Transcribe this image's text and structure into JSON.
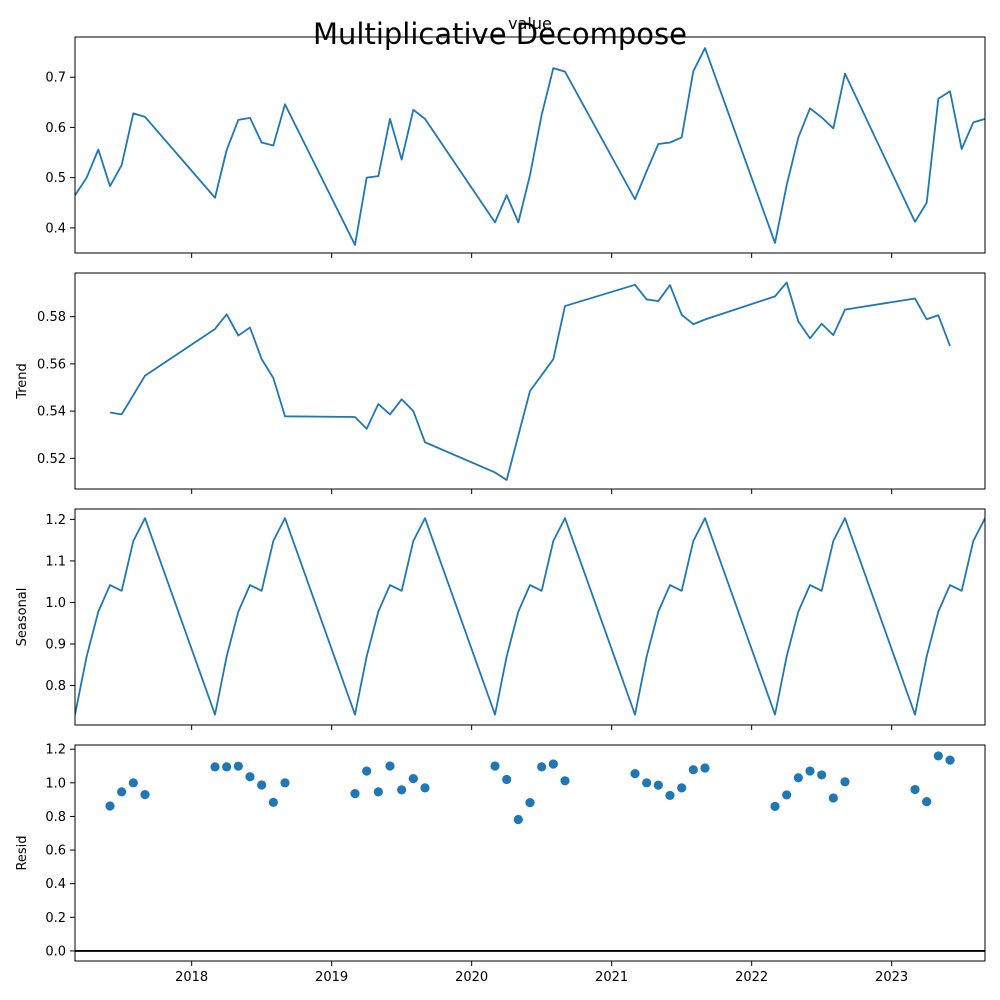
{
  "figure": {
    "title": "Multiplicative Decompose"
  },
  "chart_data": [
    {
      "type": "line",
      "title": "value",
      "ylabel": "",
      "xlim": [
        "2017-03",
        "2023-09"
      ],
      "ylim": [
        0.35,
        0.78
      ],
      "yticks": [
        0.4,
        0.5,
        0.6,
        0.7
      ],
      "ytick_labels": [
        "0.4",
        "0.5",
        "0.6",
        "0.7"
      ],
      "grid": false,
      "series": [
        {
          "color": "#1f77b4",
          "points": [
            [
              "2017-03",
              0.465
            ],
            [
              "2017-04",
              0.5
            ],
            [
              "2017-05",
              0.556
            ],
            [
              "2017-06",
              0.483
            ],
            [
              "2017-07",
              0.525
            ],
            [
              "2017-08",
              0.628
            ],
            [
              "2017-09",
              0.621
            ],
            [
              "2018-03",
              0.46
            ],
            [
              "2018-04",
              0.555
            ],
            [
              "2018-05",
              0.615
            ],
            [
              "2018-06",
              0.619
            ],
            [
              "2018-07",
              0.57
            ],
            [
              "2018-08",
              0.564
            ],
            [
              "2018-09",
              0.646
            ],
            [
              "2019-03",
              0.366
            ],
            [
              "2019-04",
              0.5
            ],
            [
              "2019-05",
              0.503
            ],
            [
              "2019-06",
              0.617
            ],
            [
              "2019-07",
              0.536
            ],
            [
              "2019-08",
              0.635
            ],
            [
              "2019-09",
              0.617
            ],
            [
              "2020-03",
              0.411
            ],
            [
              "2020-04",
              0.465
            ],
            [
              "2020-05",
              0.411
            ],
            [
              "2020-06",
              0.505
            ],
            [
              "2020-07",
              0.625
            ],
            [
              "2020-08",
              0.718
            ],
            [
              "2020-09",
              0.711
            ],
            [
              "2021-03",
              0.457
            ],
            [
              "2021-04",
              0.513
            ],
            [
              "2021-05",
              0.567
            ],
            [
              "2021-06",
              0.57
            ],
            [
              "2021-07",
              0.58
            ],
            [
              "2021-08",
              0.712
            ],
            [
              "2021-09",
              0.758
            ],
            [
              "2022-03",
              0.37
            ],
            [
              "2022-04",
              0.485
            ],
            [
              "2022-05",
              0.58
            ],
            [
              "2022-06",
              0.638
            ],
            [
              "2022-07",
              0.62
            ],
            [
              "2022-08",
              0.598
            ],
            [
              "2022-09",
              0.707
            ],
            [
              "2023-03",
              0.412
            ],
            [
              "2023-04",
              0.45
            ],
            [
              "2023-05",
              0.657
            ],
            [
              "2023-06",
              0.672
            ],
            [
              "2023-07",
              0.557
            ],
            [
              "2023-08",
              0.61
            ],
            [
              "2023-09",
              0.617
            ]
          ]
        }
      ]
    },
    {
      "type": "line",
      "title": "",
      "ylabel": "Trend",
      "xlim": [
        "2017-03",
        "2023-09"
      ],
      "ylim": [
        0.507,
        0.5985
      ],
      "yticks": [
        0.52,
        0.54,
        0.56,
        0.58
      ],
      "ytick_labels": [
        "0.52",
        "0.54",
        "0.56",
        "0.58"
      ],
      "grid": false,
      "series": [
        {
          "color": "#1f77b4",
          "points": [
            [
              "2017-06",
              0.5394
            ],
            [
              "2017-07",
              0.5386
            ],
            [
              "2017-09",
              0.555
            ],
            [
              "2018-03",
              0.5748
            ],
            [
              "2018-04",
              0.581
            ],
            [
              "2018-05",
              0.572
            ],
            [
              "2018-06",
              0.5754
            ],
            [
              "2018-07",
              0.562
            ],
            [
              "2018-08",
              0.554
            ],
            [
              "2018-09",
              0.5378
            ],
            [
              "2019-03",
              0.5375
            ],
            [
              "2019-04",
              0.5325
            ],
            [
              "2019-05",
              0.543
            ],
            [
              "2019-06",
              0.5386
            ],
            [
              "2019-07",
              0.545
            ],
            [
              "2019-08",
              0.54
            ],
            [
              "2019-09",
              0.5268
            ],
            [
              "2020-03",
              0.514
            ],
            [
              "2020-04",
              0.5108
            ],
            [
              "2020-06",
              0.5485
            ],
            [
              "2020-08",
              0.562
            ],
            [
              "2020-09",
              0.5845
            ],
            [
              "2021-03",
              0.5935
            ],
            [
              "2021-04",
              0.5873
            ],
            [
              "2021-05",
              0.5866
            ],
            [
              "2021-06",
              0.5934
            ],
            [
              "2021-07",
              0.5808
            ],
            [
              "2021-08",
              0.5768
            ],
            [
              "2021-09",
              0.5788
            ],
            [
              "2022-03",
              0.5886
            ],
            [
              "2022-04",
              0.5945
            ],
            [
              "2022-05",
              0.578
            ],
            [
              "2022-06",
              0.5708
            ],
            [
              "2022-07",
              0.577
            ],
            [
              "2022-08",
              0.5722
            ],
            [
              "2022-09",
              0.583
            ],
            [
              "2023-03",
              0.5877
            ],
            [
              "2023-04",
              0.5789
            ],
            [
              "2023-05",
              0.5806
            ],
            [
              "2023-06",
              0.5676
            ]
          ]
        }
      ]
    },
    {
      "type": "line",
      "title": "",
      "ylabel": "Seasonal",
      "xlim": [
        "2017-03",
        "2023-09"
      ],
      "ylim": [
        0.705,
        1.225
      ],
      "yticks": [
        0.8,
        0.9,
        1.0,
        1.1,
        1.2
      ],
      "ytick_labels": [
        "0.8",
        "0.9",
        "1.0",
        "1.1",
        "1.2"
      ],
      "grid": false,
      "series": [
        {
          "color": "#1f77b4",
          "points": [
            [
              "2017-03",
              0.73
            ],
            [
              "2017-04",
              0.87
            ],
            [
              "2017-05",
              0.978
            ],
            [
              "2017-06",
              1.042
            ],
            [
              "2017-07",
              1.028
            ],
            [
              "2017-08",
              1.148
            ],
            [
              "2017-09",
              1.203
            ],
            [
              "2018-03",
              0.73
            ],
            [
              "2018-04",
              0.87
            ],
            [
              "2018-05",
              0.978
            ],
            [
              "2018-06",
              1.042
            ],
            [
              "2018-07",
              1.028
            ],
            [
              "2018-08",
              1.148
            ],
            [
              "2018-09",
              1.203
            ],
            [
              "2019-03",
              0.73
            ],
            [
              "2019-04",
              0.87
            ],
            [
              "2019-05",
              0.978
            ],
            [
              "2019-06",
              1.042
            ],
            [
              "2019-07",
              1.028
            ],
            [
              "2019-08",
              1.148
            ],
            [
              "2019-09",
              1.203
            ],
            [
              "2020-03",
              0.73
            ],
            [
              "2020-04",
              0.87
            ],
            [
              "2020-05",
              0.978
            ],
            [
              "2020-06",
              1.042
            ],
            [
              "2020-07",
              1.028
            ],
            [
              "2020-08",
              1.148
            ],
            [
              "2020-09",
              1.203
            ],
            [
              "2021-03",
              0.73
            ],
            [
              "2021-04",
              0.87
            ],
            [
              "2021-05",
              0.978
            ],
            [
              "2021-06",
              1.042
            ],
            [
              "2021-07",
              1.028
            ],
            [
              "2021-08",
              1.148
            ],
            [
              "2021-09",
              1.203
            ],
            [
              "2022-03",
              0.73
            ],
            [
              "2022-04",
              0.87
            ],
            [
              "2022-05",
              0.978
            ],
            [
              "2022-06",
              1.042
            ],
            [
              "2022-07",
              1.028
            ],
            [
              "2022-08",
              1.148
            ],
            [
              "2022-09",
              1.203
            ],
            [
              "2023-03",
              0.73
            ],
            [
              "2023-04",
              0.87
            ],
            [
              "2023-05",
              0.978
            ],
            [
              "2023-06",
              1.042
            ],
            [
              "2023-07",
              1.028
            ],
            [
              "2023-08",
              1.148
            ],
            [
              "2023-09",
              1.203
            ]
          ]
        }
      ]
    },
    {
      "type": "scatter",
      "title": "",
      "ylabel": "Resid",
      "xlim": [
        "2017-03",
        "2023-09"
      ],
      "ylim": [
        -0.06,
        1.225
      ],
      "yticks": [
        0.0,
        0.2,
        0.4,
        0.6,
        0.8,
        1.0,
        1.2
      ],
      "ytick_labels": [
        "0.0",
        "0.2",
        "0.4",
        "0.6",
        "0.8",
        "1.0",
        "1.2"
      ],
      "xticks": [
        "2018-01",
        "2019-01",
        "2020-01",
        "2021-01",
        "2022-01",
        "2023-01"
      ],
      "xtick_labels": [
        "2018",
        "2019",
        "2020",
        "2021",
        "2022",
        "2023"
      ],
      "grid": false,
      "reference_line": 0.0,
      "series": [
        {
          "color": "#1f77b4",
          "points": [
            [
              "2017-06",
              0.862
            ],
            [
              "2017-07",
              0.946
            ],
            [
              "2017-08",
              1.0
            ],
            [
              "2017-09",
              0.93
            ],
            [
              "2018-03",
              1.095
            ],
            [
              "2018-04",
              1.095
            ],
            [
              "2018-05",
              1.099
            ],
            [
              "2018-06",
              1.036
            ],
            [
              "2018-07",
              0.987
            ],
            [
              "2018-08",
              0.884
            ],
            [
              "2018-09",
              1.0
            ],
            [
              "2019-03",
              0.936
            ],
            [
              "2019-04",
              1.07
            ],
            [
              "2019-05",
              0.946
            ],
            [
              "2019-06",
              1.1
            ],
            [
              "2019-07",
              0.958
            ],
            [
              "2019-08",
              1.025
            ],
            [
              "2019-09",
              0.97
            ],
            [
              "2020-03",
              1.1
            ],
            [
              "2020-04",
              1.02
            ],
            [
              "2020-05",
              0.782
            ],
            [
              "2020-06",
              0.882
            ],
            [
              "2020-07",
              1.095
            ],
            [
              "2020-08",
              1.112
            ],
            [
              "2020-09",
              1.012
            ],
            [
              "2021-03",
              1.055
            ],
            [
              "2021-04",
              1.0
            ],
            [
              "2021-05",
              0.986
            ],
            [
              "2021-06",
              0.925
            ],
            [
              "2021-07",
              0.97
            ],
            [
              "2021-08",
              1.078
            ],
            [
              "2021-09",
              1.088
            ],
            [
              "2022-03",
              0.86
            ],
            [
              "2022-04",
              0.928
            ],
            [
              "2022-05",
              1.03
            ],
            [
              "2022-06",
              1.07
            ],
            [
              "2022-07",
              1.047
            ],
            [
              "2022-08",
              0.91
            ],
            [
              "2022-09",
              1.006
            ],
            [
              "2023-03",
              0.96
            ],
            [
              "2023-04",
              0.888
            ],
            [
              "2023-05",
              1.16
            ],
            [
              "2023-06",
              1.135
            ]
          ]
        }
      ]
    }
  ]
}
